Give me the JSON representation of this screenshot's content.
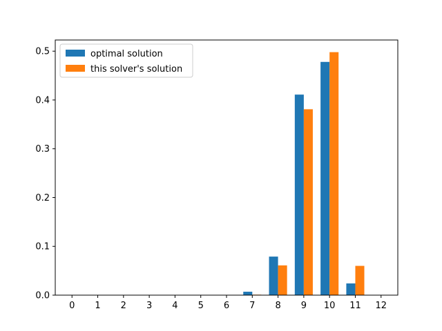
{
  "chart_data": {
    "type": "bar",
    "categories": [
      "0",
      "1",
      "2",
      "3",
      "4",
      "5",
      "6",
      "7",
      "8",
      "9",
      "10",
      "11",
      "12"
    ],
    "series": [
      {
        "name": "optimal solution",
        "color": "#1f77b4",
        "values": [
          0,
          0,
          0,
          0,
          0,
          0,
          0,
          0.007,
          0.079,
          0.411,
          0.478,
          0.024,
          0
        ]
      },
      {
        "name": "this solver's solution",
        "color": "#ff7f0e",
        "values": [
          0,
          0,
          0,
          0,
          0,
          0,
          0,
          0.001,
          0.061,
          0.381,
          0.498,
          0.06,
          0
        ]
      }
    ],
    "title": "",
    "xlabel": "",
    "ylabel": "",
    "ylim": [
      0,
      0.5
    ],
    "yticks": [
      "0.0",
      "0.1",
      "0.2",
      "0.3",
      "0.4",
      "0.5"
    ],
    "ytick_values": [
      0,
      0.1,
      0.2,
      0.3,
      0.4,
      0.5
    ],
    "grid": false,
    "legend_position": "upper-left"
  }
}
